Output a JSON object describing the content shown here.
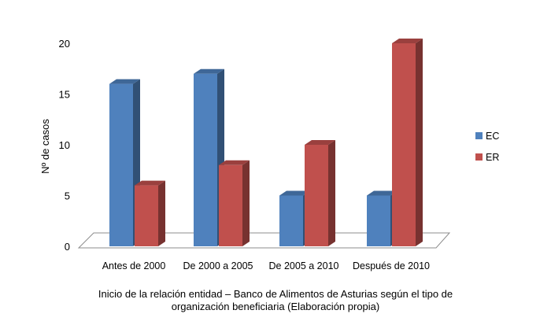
{
  "chart_data": {
    "type": "bar",
    "title": "",
    "xlabel": "",
    "ylabel": "Nº de casos",
    "ylim": [
      0,
      20
    ],
    "yticks": [
      0,
      5,
      10,
      15,
      20
    ],
    "categories": [
      "Antes de 2000",
      "De 2000 a 2005",
      "De 2005 a 2010",
      "Después de 2010"
    ],
    "series": [
      {
        "name": "EC",
        "values": [
          16,
          17,
          5,
          5
        ],
        "color": "#4F81BD"
      },
      {
        "name": "ER",
        "values": [
          6,
          8,
          10,
          20
        ],
        "color": "#C0504D"
      }
    ],
    "legend_position": "right",
    "style": "3d-column"
  },
  "caption": {
    "line1": "Inicio de la relación entidad – Banco de Alimentos de Asturias según el tipo de",
    "line2": "organización beneficiaria (Elaboración propia)"
  }
}
